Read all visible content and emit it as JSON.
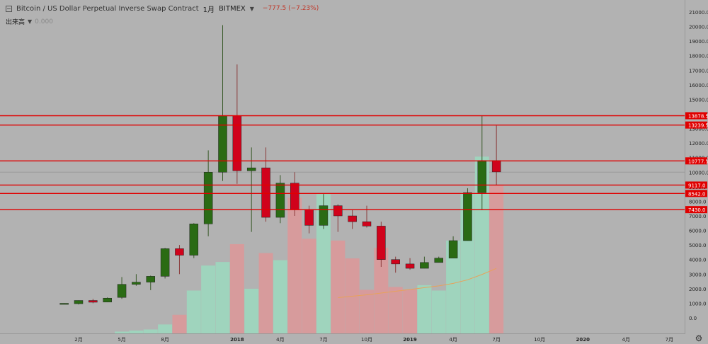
{
  "header": {
    "title": "Bitcoin / US Dollar Perpetual Inverse Swap Contract",
    "interval": "1月",
    "exchange": "BITMEX",
    "change": "−777.5 (−7.23%)"
  },
  "volume_legend": {
    "label": "出来高",
    "value": "0.000"
  },
  "colors": {
    "up": "#2a6b14",
    "down": "#d0021b",
    "up_vol": "#9fd4bd",
    "down_vol": "#d79b9c",
    "ma": "#e8a25a",
    "hline": "#e00000",
    "bg": "#b2b2b2"
  },
  "chart_data": {
    "type": "candlestick",
    "title": "Bitcoin / US Dollar Perpetual Inverse Swap Contract",
    "y_range": [
      -1000,
      21000
    ],
    "y_ticks": [
      -1000,
      0,
      1000,
      2000,
      3000,
      4000,
      5000,
      6000,
      7000,
      8000,
      9000,
      10000,
      11000,
      12000,
      13000,
      14000,
      15000,
      16000,
      17000,
      18000,
      19000,
      20000,
      21000
    ],
    "x_ticks": [
      {
        "label": "2月",
        "month": "2017-02"
      },
      {
        "label": "5月",
        "month": "2017-05"
      },
      {
        "label": "8月",
        "month": "2017-08"
      },
      {
        "label": "2018",
        "month": "2018-01"
      },
      {
        "label": "4月",
        "month": "2018-04"
      },
      {
        "label": "7月",
        "month": "2018-07"
      },
      {
        "label": "10月",
        "month": "2018-10"
      },
      {
        "label": "2019",
        "month": "2019-01"
      },
      {
        "label": "4月",
        "month": "2019-04"
      },
      {
        "label": "7月",
        "month": "2019-07"
      },
      {
        "label": "10月",
        "month": "2019-10"
      },
      {
        "label": "2020",
        "month": "2020-01"
      },
      {
        "label": "4月",
        "month": "2020-04"
      },
      {
        "label": "7月",
        "month": "2020-07"
      }
    ],
    "candles": [
      {
        "month": "2017-01",
        "open": 990,
        "high": 1000,
        "low": 980,
        "close": 995
      },
      {
        "month": "2017-02",
        "open": 970,
        "high": 1200,
        "low": 920,
        "close": 1190
      },
      {
        "month": "2017-03",
        "open": 1190,
        "high": 1300,
        "low": 1000,
        "close": 1070
      },
      {
        "month": "2017-04",
        "open": 1080,
        "high": 1400,
        "low": 1070,
        "close": 1350
      },
      {
        "month": "2017-05",
        "open": 1400,
        "high": 2800,
        "low": 1300,
        "close": 2300
      },
      {
        "month": "2017-06",
        "open": 2300,
        "high": 3000,
        "low": 2200,
        "close": 2450
      },
      {
        "month": "2017-07",
        "open": 2450,
        "high": 2900,
        "low": 1900,
        "close": 2850
      },
      {
        "month": "2017-08",
        "open": 2850,
        "high": 4800,
        "low": 2700,
        "close": 4750
      },
      {
        "month": "2017-09",
        "open": 4750,
        "high": 5000,
        "low": 3000,
        "close": 4300
      },
      {
        "month": "2017-10",
        "open": 4300,
        "high": 6500,
        "low": 4100,
        "close": 6450
      },
      {
        "month": "2017-11",
        "open": 6450,
        "high": 11500,
        "low": 5600,
        "close": 10000
      },
      {
        "month": "2017-12",
        "open": 10000,
        "high": 20100,
        "low": 9400,
        "close": 13880
      },
      {
        "month": "2018-01",
        "open": 13880,
        "high": 17400,
        "low": 9200,
        "close": 10100
      },
      {
        "month": "2018-02",
        "open": 10100,
        "high": 11700,
        "low": 5900,
        "close": 10300
      },
      {
        "month": "2018-03",
        "open": 10300,
        "high": 11700,
        "low": 6600,
        "close": 6900
      },
      {
        "month": "2018-04",
        "open": 6900,
        "high": 9800,
        "low": 6500,
        "close": 9250
      },
      {
        "month": "2018-05",
        "open": 9250,
        "high": 10000,
        "low": 7000,
        "close": 7450
      },
      {
        "month": "2018-06",
        "open": 7450,
        "high": 7700,
        "low": 5800,
        "close": 6350
      },
      {
        "month": "2018-07",
        "open": 6350,
        "high": 8500,
        "low": 6100,
        "close": 7700
      },
      {
        "month": "2018-08",
        "open": 7700,
        "high": 7800,
        "low": 5900,
        "close": 7000
      },
      {
        "month": "2018-09",
        "open": 7000,
        "high": 7400,
        "low": 6100,
        "close": 6600
      },
      {
        "month": "2018-10",
        "open": 6600,
        "high": 7700,
        "low": 6200,
        "close": 6300
      },
      {
        "month": "2018-11",
        "open": 6300,
        "high": 6600,
        "low": 3500,
        "close": 4000
      },
      {
        "month": "2018-12",
        "open": 4000,
        "high": 4200,
        "low": 3100,
        "close": 3700
      },
      {
        "month": "2019-01",
        "open": 3700,
        "high": 4100,
        "low": 3300,
        "close": 3400
      },
      {
        "month": "2019-02",
        "open": 3400,
        "high": 4200,
        "low": 3400,
        "close": 3800
      },
      {
        "month": "2019-03",
        "open": 3800,
        "high": 4200,
        "low": 3800,
        "close": 4100
      },
      {
        "month": "2019-04",
        "open": 4100,
        "high": 5600,
        "low": 4100,
        "close": 5300
      },
      {
        "month": "2019-05",
        "open": 5300,
        "high": 8900,
        "low": 5300,
        "close": 8600
      },
      {
        "month": "2019-06",
        "open": 8600,
        "high": 13880,
        "low": 7400,
        "close": 10800
      },
      {
        "month": "2019-07",
        "open": 10800,
        "high": 13200,
        "low": 9100,
        "close": 10020
      }
    ],
    "volume": {
      "scale_max": 9000,
      "values": [
        0,
        0,
        0,
        0,
        50,
        80,
        110,
        250,
        520,
        1200,
        1900,
        2000,
        2500,
        1250,
        2250,
        2050,
        3800,
        2650,
        3900,
        2600,
        2100,
        1220,
        2400,
        1300,
        1230,
        1350,
        1200,
        2600,
        3950,
        4950,
        4150
      ],
      "ma_values": [
        null,
        null,
        null,
        null,
        null,
        null,
        null,
        null,
        null,
        null,
        null,
        null,
        null,
        null,
        null,
        null,
        null,
        null,
        null,
        1000,
        1040,
        1080,
        1130,
        1180,
        1230,
        1280,
        1330,
        1400,
        1500,
        1650,
        1820
      ]
    },
    "price_lines": [
      {
        "price": 13878.5,
        "label": "13878.5"
      },
      {
        "price": 13239.5,
        "label": "13239.5"
      },
      {
        "price": 10777.5,
        "label": "10777.5"
      },
      {
        "price": 9117.0,
        "label": "9117.0"
      },
      {
        "price": 8542.0,
        "label": "8542.0"
      },
      {
        "price": 7430.0,
        "label": "7430.0"
      }
    ],
    "last_price": 10000
  }
}
